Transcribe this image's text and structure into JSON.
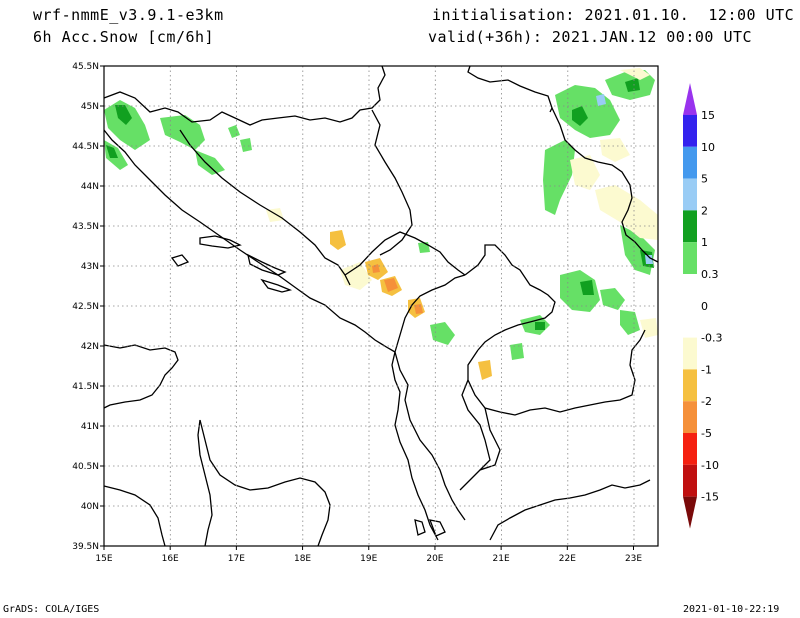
{
  "header": {
    "model": "wrf-nmmE_v3.9.1-e3km",
    "field": "6h Acc.Snow [cm/6h]",
    "initialisation": "initialisation: 2021.01.10.  12:00 UTC",
    "valid": "valid(+36h): 2021.JAN.12 00:00 UTC"
  },
  "footer": {
    "credit": "GrADS: COLA/IGES",
    "timestamp": "2021-01-10-22:19"
  },
  "map": {
    "lon_ticks": [
      "15E",
      "16E",
      "17E",
      "18E",
      "19E",
      "20E",
      "21E",
      "22E",
      "23E"
    ],
    "lat_ticks": [
      "39.5N",
      "40N",
      "40.5N",
      "41N",
      "41.5N",
      "42N",
      "42.5N",
      "43N",
      "43.5N",
      "44N",
      "44.5N",
      "45N",
      "45.5N"
    ],
    "grid": true
  },
  "legend": {
    "levels": [
      {
        "label": "15",
        "color": "#3322ee"
      },
      {
        "label": "10",
        "color": "#4499ee"
      },
      {
        "label": "5",
        "color": "#99ccf5"
      },
      {
        "label": "2",
        "color": "#11a020"
      },
      {
        "label": "1",
        "color": "#66e066"
      },
      {
        "label": "0.3",
        "color": "#ffffff"
      },
      {
        "label": "0",
        "color": "#ffffff"
      },
      {
        "label": "-0.3",
        "color": "#fcfad0"
      },
      {
        "label": "-1",
        "color": "#f5c040"
      },
      {
        "label": "-2",
        "color": "#f5903a"
      },
      {
        "label": "-5",
        "color": "#f52010"
      },
      {
        "label": "-10",
        "color": "#c01010"
      },
      {
        "label": "-15",
        "color": "#8b0a0a"
      }
    ],
    "top_arrow_color": "#9933ee",
    "bottom_arrow_color": "#7a0a0a"
  }
}
